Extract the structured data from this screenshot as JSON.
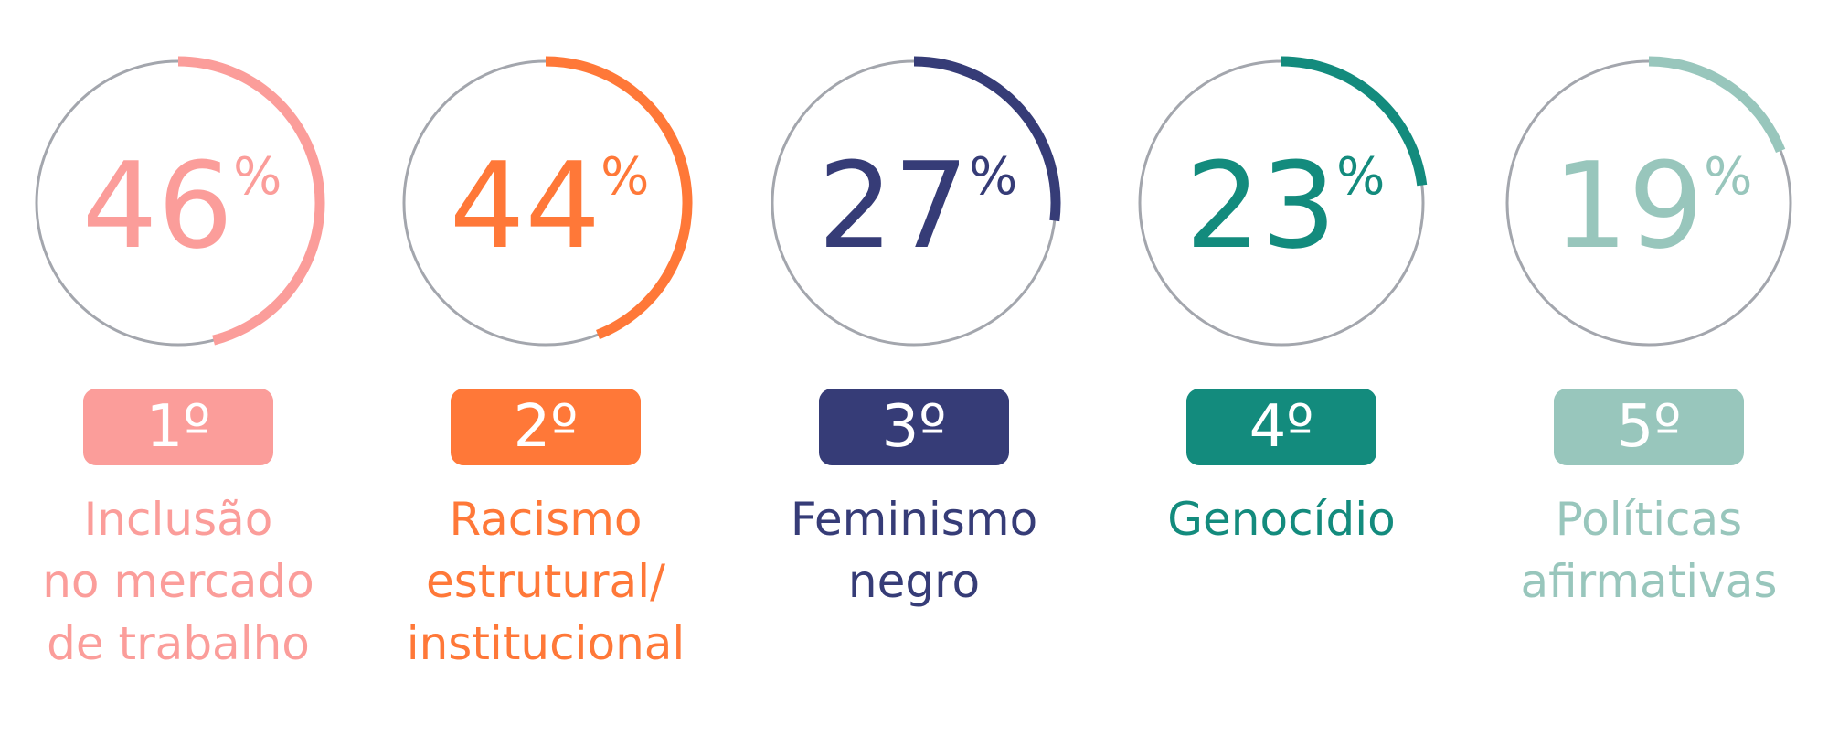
{
  "chart_data": {
    "type": "gauge",
    "unit": "%",
    "items": [
      {
        "value": 46,
        "rank": "1º",
        "label_lines": [
          "Inclusão",
          "no mercado",
          "de trabalho"
        ],
        "color": "#FB9D9A"
      },
      {
        "value": 44,
        "rank": "2º",
        "label_lines": [
          "Racismo",
          "estrutural/",
          "institucional"
        ],
        "color": "#FF7838"
      },
      {
        "value": 27,
        "rank": "3º",
        "label_lines": [
          "Feminismo",
          "negro"
        ],
        "color": "#363C77"
      },
      {
        "value": 23,
        "rank": "4º",
        "label_lines": [
          "Genocídio"
        ],
        "color": "#138B7D"
      },
      {
        "value": 19,
        "rank": "5º",
        "label_lines": [
          "Políticas",
          "afirmativas"
        ],
        "color": "#98C6BC"
      }
    ],
    "track_color": "#A3A6AD"
  }
}
